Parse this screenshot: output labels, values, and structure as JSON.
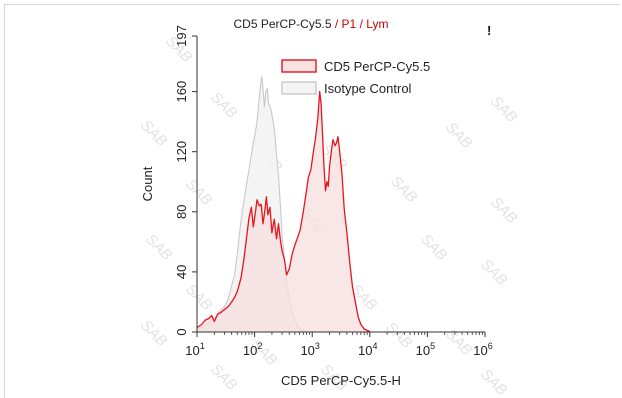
{
  "chart_data": {
    "type": "histogram",
    "title": {
      "parameter": "CD5 PerCP-Cy5.5",
      "separator": "/",
      "gate1": "P1",
      "gate2": "Lym"
    },
    "indicator": "!",
    "xlabel": "CD5 PerCP-Cy5.5-H",
    "ylabel": "Count",
    "x_scale": "log",
    "xlim": [
      10,
      1000000
    ],
    "x_ticks": [
      {
        "value": 10,
        "base": "10",
        "exp": "1"
      },
      {
        "value": 100,
        "base": "10",
        "exp": "2"
      },
      {
        "value": 1000,
        "base": "10",
        "exp": "3"
      },
      {
        "value": 10000,
        "base": "10",
        "exp": "4"
      },
      {
        "value": 100000,
        "base": "10",
        "exp": "5"
      },
      {
        "value": 1000000,
        "base": "10",
        "exp": "6"
      }
    ],
    "ylim": [
      0,
      197
    ],
    "y_ticks": [
      "0",
      "40",
      "80",
      "120",
      "160",
      "197"
    ],
    "y_tick_values": [
      0,
      40,
      80,
      120,
      160,
      197
    ],
    "legend_position": "top-right",
    "watermark": "SAB",
    "series": [
      {
        "name": "CD5 PerCP-Cy5.5",
        "color": "#e8141c",
        "fill": "#f7dede",
        "points": [
          [
            10,
            3
          ],
          [
            12,
            5
          ],
          [
            14,
            8
          ],
          [
            16,
            9
          ],
          [
            18,
            11
          ],
          [
            20,
            7
          ],
          [
            23,
            12
          ],
          [
            26,
            13
          ],
          [
            30,
            15
          ],
          [
            35,
            17
          ],
          [
            40,
            20
          ],
          [
            45,
            23
          ],
          [
            50,
            27
          ],
          [
            58,
            36
          ],
          [
            65,
            48
          ],
          [
            72,
            62
          ],
          [
            80,
            76
          ],
          [
            88,
            83
          ],
          [
            95,
            70
          ],
          [
            102,
            78
          ],
          [
            110,
            88
          ],
          [
            120,
            84
          ],
          [
            130,
            85
          ],
          [
            140,
            72
          ],
          [
            150,
            80
          ],
          [
            160,
            90
          ],
          [
            170,
            78
          ],
          [
            185,
            83
          ],
          [
            200,
            66
          ],
          [
            220,
            75
          ],
          [
            240,
            62
          ],
          [
            260,
            72
          ],
          [
            280,
            61
          ],
          [
            300,
            54
          ],
          [
            330,
            48
          ],
          [
            360,
            38
          ],
          [
            400,
            42
          ],
          [
            450,
            52
          ],
          [
            500,
            58
          ],
          [
            560,
            63
          ],
          [
            620,
            68
          ],
          [
            700,
            80
          ],
          [
            780,
            92
          ],
          [
            860,
            103
          ],
          [
            950,
            108
          ],
          [
            1050,
            120
          ],
          [
            1150,
            130
          ],
          [
            1250,
            142
          ],
          [
            1350,
            160
          ],
          [
            1430,
            152
          ],
          [
            1500,
            135
          ],
          [
            1600,
            110
          ],
          [
            1700,
            94
          ],
          [
            1800,
            100
          ],
          [
            1900,
            97
          ],
          [
            2000,
            110
          ],
          [
            2150,
            120
          ],
          [
            2300,
            128
          ],
          [
            2500,
            124
          ],
          [
            2650,
            126
          ],
          [
            2800,
            130
          ],
          [
            3000,
            120
          ],
          [
            3300,
            104
          ],
          [
            3600,
            82
          ],
          [
            4000,
            66
          ],
          [
            4500,
            46
          ],
          [
            5000,
            30
          ],
          [
            5600,
            20
          ],
          [
            6300,
            10
          ],
          [
            7000,
            5
          ],
          [
            8000,
            2
          ],
          [
            9000,
            1
          ],
          [
            10000,
            0.5
          ]
        ]
      },
      {
        "name": "Isotype Control",
        "color": "#c8c8c8",
        "fill": "#f2f2f2",
        "points": [
          [
            10,
            2
          ],
          [
            12,
            3
          ],
          [
            15,
            5
          ],
          [
            18,
            8
          ],
          [
            21,
            10
          ],
          [
            25,
            14
          ],
          [
            30,
            17
          ],
          [
            35,
            22
          ],
          [
            40,
            31
          ],
          [
            45,
            38
          ],
          [
            50,
            52
          ],
          [
            55,
            66
          ],
          [
            60,
            78
          ],
          [
            66,
            88
          ],
          [
            72,
            98
          ],
          [
            80,
            108
          ],
          [
            88,
            118
          ],
          [
            95,
            126
          ],
          [
            102,
            132
          ],
          [
            110,
            140
          ],
          [
            118,
            152
          ],
          [
            125,
            162
          ],
          [
            133,
            170
          ],
          [
            140,
            162
          ],
          [
            148,
            150
          ],
          [
            157,
            160
          ],
          [
            166,
            162
          ],
          [
            175,
            152
          ],
          [
            185,
            150
          ],
          [
            195,
            147
          ],
          [
            210,
            140
          ],
          [
            225,
            132
          ],
          [
            240,
            118
          ],
          [
            260,
            104
          ],
          [
            280,
            84
          ],
          [
            300,
            64
          ],
          [
            330,
            48
          ],
          [
            360,
            32
          ],
          [
            400,
            22
          ],
          [
            450,
            14
          ],
          [
            500,
            8
          ],
          [
            560,
            4
          ],
          [
            650,
            1.5
          ],
          [
            750,
            0.5
          ]
        ]
      }
    ]
  }
}
